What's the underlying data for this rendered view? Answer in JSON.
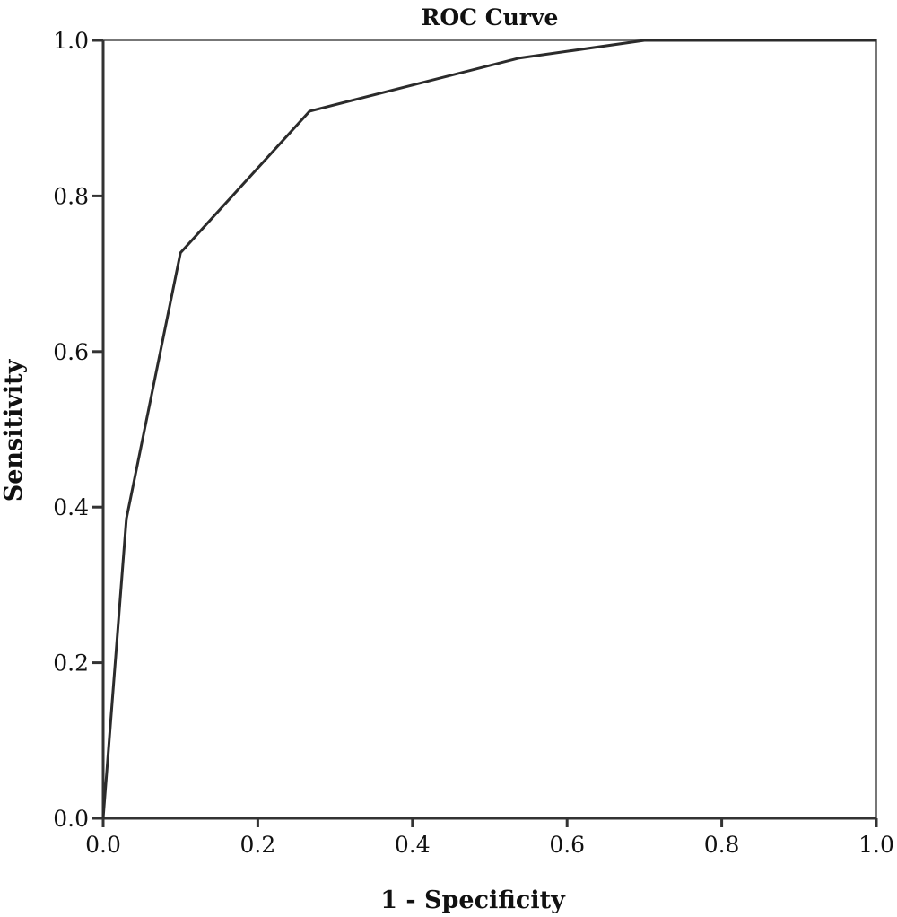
{
  "chart_data": {
    "type": "line",
    "title": "ROC Curve",
    "xlabel": "1 - Specificity",
    "ylabel": "Sensitivity",
    "xlim": [
      0,
      1
    ],
    "ylim": [
      0,
      1
    ],
    "x_ticks": [
      "0.0",
      "0.2",
      "0.4",
      "0.6",
      "0.8",
      "1.0"
    ],
    "y_ticks": [
      "0.0",
      "0.2",
      "0.4",
      "0.6",
      "0.8",
      "1.0"
    ],
    "grid": false,
    "series": [
      {
        "x": [
          0.0,
          0.03,
          0.1,
          0.267,
          0.537,
          0.7,
          1.0
        ],
        "y": [
          0.0,
          0.385,
          0.727,
          0.909,
          0.977,
          1.0,
          1.0
        ]
      }
    ],
    "colors": {
      "line": "#2b2b2b",
      "axes": "#333333",
      "frame": "#777777"
    }
  }
}
